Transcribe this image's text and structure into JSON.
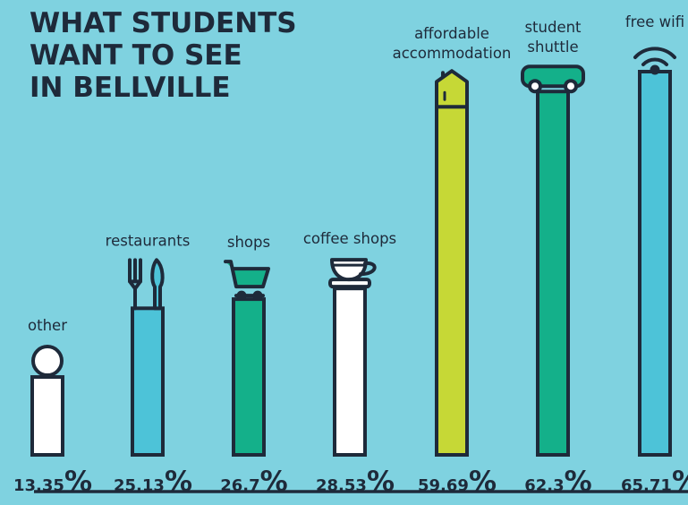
{
  "chart_data": {
    "type": "bar",
    "title_lines": [
      "WHAT STUDENTS",
      "WANT TO SEE",
      "IN BELLVILLE"
    ],
    "categories": [
      "other",
      "restaurants",
      "shops",
      "coffee shops",
      "affordable accommodation",
      "student shuttle",
      "free wifi"
    ],
    "category_label_lines": [
      [
        "other"
      ],
      [
        "restaurants"
      ],
      [
        "shops"
      ],
      [
        "coffee shops"
      ],
      [
        "affordable",
        "accommodation"
      ],
      [
        "student",
        "shuttle"
      ],
      [
        "free wifi"
      ]
    ],
    "values": [
      13.35,
      25.13,
      26.7,
      28.53,
      59.69,
      62.3,
      65.71
    ],
    "value_labels": [
      "13.35",
      "25.13",
      "26.7",
      "28.53",
      "59.69",
      "62.3",
      "65.71"
    ],
    "unit": "%",
    "icons": [
      "person-icon",
      "cutlery-icon",
      "shopping-cart-icon",
      "coffee-cup-icon",
      "house-icon",
      "bus-icon",
      "wifi-icon"
    ],
    "colors": [
      "#ffffff",
      "#4dc3d8",
      "#14b08a",
      "#ffffff",
      "#c6d836",
      "#14b08a",
      "#4dc3d8"
    ],
    "background": "#7fd2e0",
    "ink": "#1e2a3a",
    "ylim": [
      0,
      65.71
    ],
    "grid": false,
    "legend": "none"
  }
}
